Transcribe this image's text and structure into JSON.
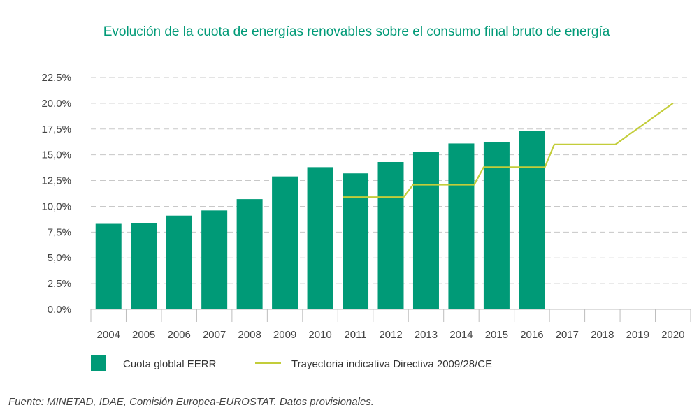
{
  "chart_data": {
    "type": "bar",
    "title": "Evolución de la cuota de energías renovables sobre el consumo final bruto de energía",
    "categories": [
      "2004",
      "2005",
      "2006",
      "2007",
      "2008",
      "2009",
      "2010",
      "2011",
      "2012",
      "2013",
      "2014",
      "2015",
      "2016",
      "2017",
      "2018",
      "2019",
      "2020"
    ],
    "series": [
      {
        "name": "Cuota globlal EERR",
        "type": "bar",
        "values": [
          8.3,
          8.4,
          9.1,
          9.6,
          10.7,
          12.9,
          13.8,
          13.2,
          14.3,
          15.3,
          16.1,
          16.2,
          17.3,
          null,
          null,
          null,
          null
        ]
      },
      {
        "name": "Trayectoria indicativa Directiva 2009/28/CE",
        "type": "step-line",
        "values": [
          null,
          null,
          null,
          null,
          null,
          null,
          null,
          10.9,
          10.9,
          12.1,
          12.1,
          13.8,
          13.8,
          16.0,
          16.0,
          null,
          20.0
        ]
      }
    ],
    "y_ticks": [
      "0,0%",
      "2,5%",
      "5,0%",
      "7,5%",
      "10,0%",
      "12,5%",
      "15,0%",
      "17,5%",
      "20,0%",
      "22,5%"
    ],
    "ylim": [
      0,
      22.5
    ],
    "grid": "horizontal-dashed",
    "legend": "bottom",
    "source": "Fuente: MINETAD, IDAE, Comisión Europea-EUROSTAT. Datos provisionales."
  },
  "colors": {
    "bar": "#009a77",
    "line": "#c3cd3a",
    "title": "#009a77",
    "grid": "#c8c8c8"
  }
}
